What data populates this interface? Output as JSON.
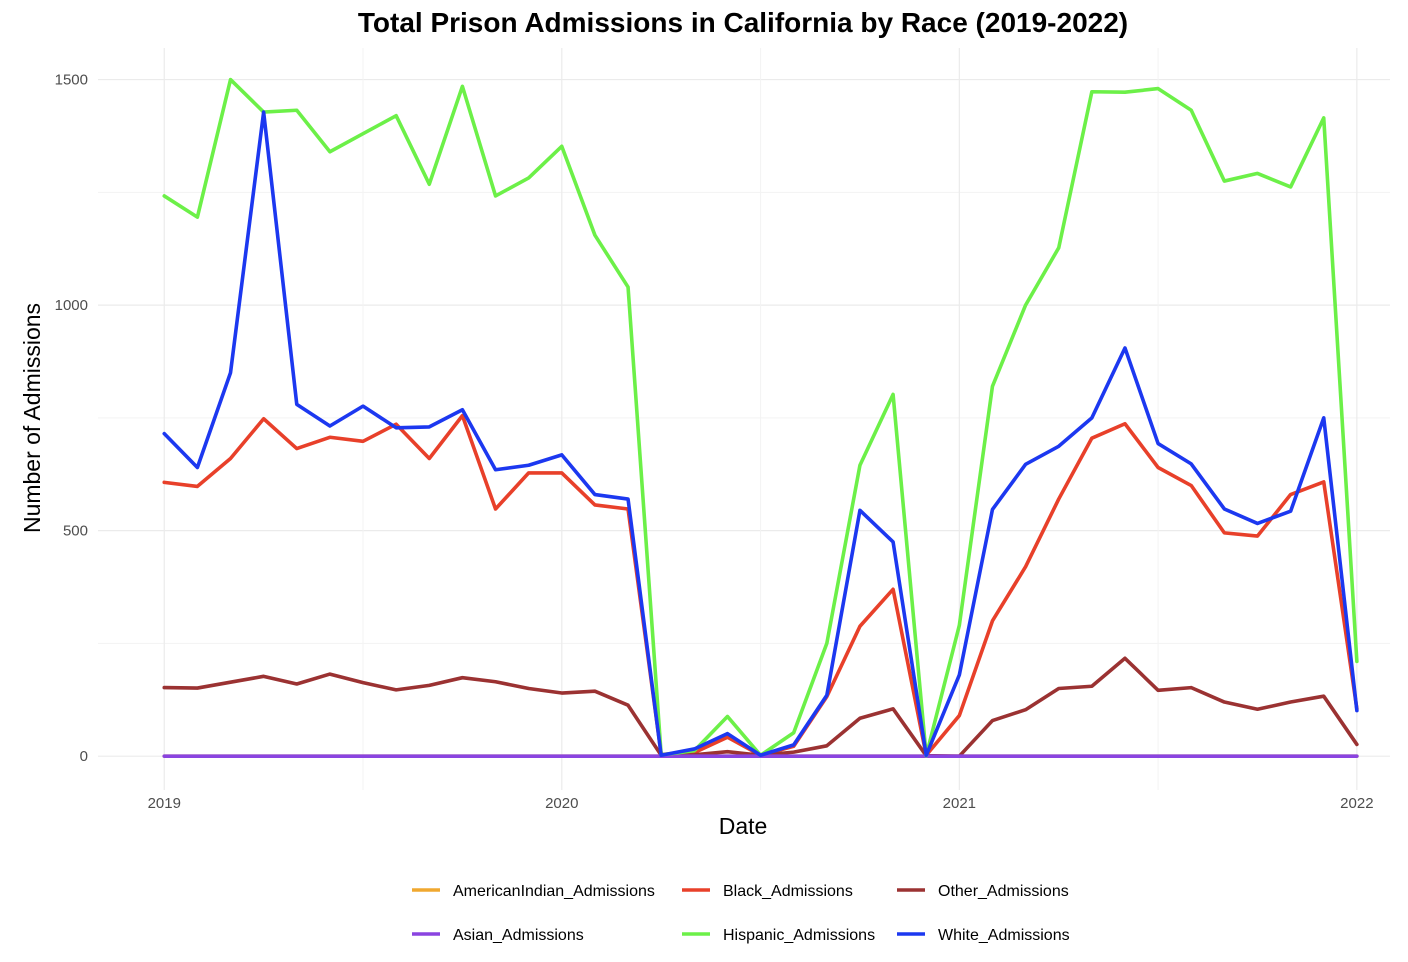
{
  "chart_data": {
    "type": "line",
    "title": "Total Prison Admissions in California by Race (2019-2022)",
    "xlabel": "Date",
    "ylabel": "Number of Admissions",
    "xlim": [
      "2018-11-01",
      "2022-02-01"
    ],
    "ylim": [
      -75,
      1570
    ],
    "x_ticks": [
      "2019",
      "2020",
      "2021",
      "2022"
    ],
    "y_ticks": [
      0,
      500,
      1000,
      1500
    ],
    "grid": true,
    "legend_position": "bottom",
    "x": [
      "2019-01",
      "2019-02",
      "2019-03",
      "2019-04",
      "2019-05",
      "2019-06",
      "2019-07",
      "2019-08",
      "2019-09",
      "2019-10",
      "2019-11",
      "2019-12",
      "2020-01",
      "2020-02",
      "2020-03",
      "2020-04",
      "2020-05",
      "2020-06",
      "2020-07",
      "2020-08",
      "2020-09",
      "2020-10",
      "2020-11",
      "2020-12",
      "2021-01",
      "2021-02",
      "2021-03",
      "2021-04",
      "2021-05",
      "2021-06",
      "2021-07",
      "2021-08",
      "2021-09",
      "2021-10",
      "2021-11",
      "2021-12",
      "2022-01"
    ],
    "series": [
      {
        "name": "AmericanIndian_Admissions",
        "color": "#f0a830",
        "values": [
          0,
          0,
          0,
          0,
          0,
          0,
          0,
          0,
          0,
          0,
          0,
          0,
          0,
          0,
          0,
          0,
          0,
          0,
          0,
          0,
          0,
          0,
          0,
          0,
          0,
          0,
          0,
          0,
          0,
          0,
          0,
          0,
          0,
          0,
          0,
          0,
          0
        ]
      },
      {
        "name": "Black_Admissions",
        "color": "#e8402a",
        "values": [
          607,
          598,
          660,
          748,
          682,
          707,
          698,
          736,
          660,
          755,
          548,
          628,
          628,
          557,
          548,
          4,
          8,
          42,
          2,
          22,
          132,
          288,
          370,
          2,
          90,
          300,
          420,
          570,
          705,
          737,
          640,
          600,
          495,
          488,
          580,
          608,
          105
        ]
      },
      {
        "name": "Other_Admissions",
        "color": "#9b3232",
        "values": [
          152,
          151,
          164,
          177,
          160,
          182,
          163,
          147,
          157,
          174,
          165,
          150,
          140,
          144,
          113,
          2,
          3,
          10,
          2,
          9,
          23,
          84,
          105,
          1,
          0,
          79,
          103,
          150,
          155,
          217,
          146,
          152,
          120,
          104,
          120,
          133,
          26
        ]
      },
      {
        "name": "Asian_Admissions",
        "color": "#8a44e0",
        "values": [
          0,
          0,
          0,
          0,
          0,
          0,
          0,
          0,
          0,
          0,
          0,
          0,
          0,
          0,
          0,
          0,
          0,
          0,
          0,
          0,
          0,
          0,
          0,
          0,
          0,
          0,
          0,
          0,
          0,
          0,
          0,
          0,
          0,
          0,
          0,
          0,
          0
        ]
      },
      {
        "name": "Hispanic_Admissions",
        "color": "#6cf048",
        "values": [
          1242,
          1195,
          1500,
          1428,
          1432,
          1340,
          1380,
          1420,
          1268,
          1485,
          1242,
          1282,
          1352,
          1155,
          1040,
          3,
          12,
          88,
          2,
          52,
          250,
          645,
          802,
          1,
          290,
          820,
          1000,
          1127,
          1473,
          1472,
          1480,
          1432,
          1275,
          1292,
          1262,
          1415,
          210
        ]
      },
      {
        "name": "White_Admissions",
        "color": "#1c38f0",
        "values": [
          715,
          640,
          850,
          1428,
          780,
          732,
          776,
          728,
          730,
          768,
          635,
          645,
          668,
          580,
          570,
          2,
          16,
          50,
          2,
          25,
          135,
          545,
          475,
          2,
          180,
          547,
          647,
          687,
          750,
          905,
          693,
          648,
          548,
          516,
          543,
          750,
          101
        ]
      }
    ],
    "legend_order": [
      "AmericanIndian_Admissions",
      "Black_Admissions",
      "Other_Admissions",
      "Asian_Admissions",
      "Hispanic_Admissions",
      "White_Admissions"
    ]
  }
}
